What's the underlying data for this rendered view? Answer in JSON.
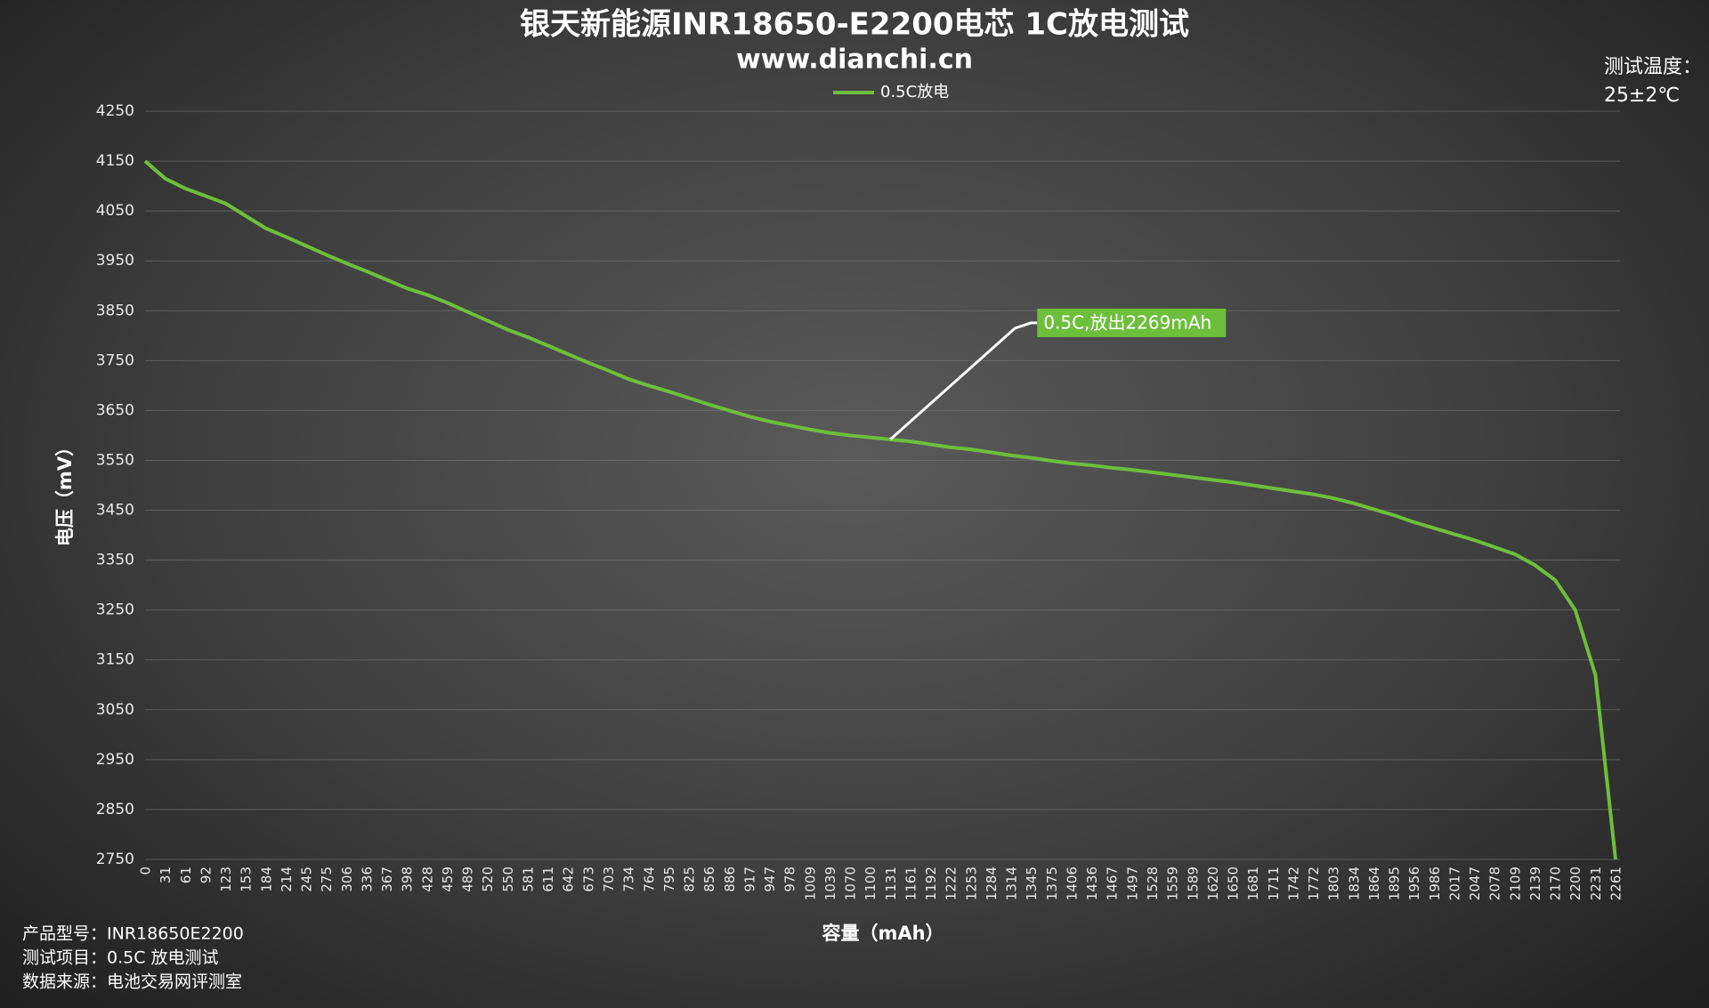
{
  "chart_data": {
    "type": "line",
    "title": "银天新能源INR18650-E2200电芯 1C放电测试",
    "subtitle": "www.dianchi.cn",
    "x_label": "容量（mAh）",
    "y_label": "电压（mV）",
    "corner_note": [
      "测试温度：",
      "25±2℃"
    ],
    "footer_notes": [
      "产品型号：INR18650E2200",
      "测试项目：0.5C 放电测试",
      "数据来源：电池交易网评测室"
    ],
    "annotation": "0.5C,放出2269mAh",
    "legend": "top",
    "grid": true,
    "categories": [
      "0",
      "31",
      "61",
      "92",
      "123",
      "153",
      "184",
      "214",
      "245",
      "275",
      "306",
      "336",
      "367",
      "398",
      "428",
      "459",
      "489",
      "520",
      "550",
      "581",
      "611",
      "642",
      "673",
      "703",
      "734",
      "764",
      "795",
      "825",
      "856",
      "886",
      "917",
      "947",
      "978",
      "1009",
      "1039",
      "1070",
      "1100",
      "1131",
      "1161",
      "1192",
      "1222",
      "1253",
      "1284",
      "1314",
      "1345",
      "1375",
      "1406",
      "1436",
      "1467",
      "1497",
      "1528",
      "1559",
      "1589",
      "1620",
      "1650",
      "1681",
      "1711",
      "1742",
      "1772",
      "1803",
      "1834",
      "1864",
      "1895",
      "1956",
      "1986",
      "2017",
      "2047",
      "2078",
      "2109",
      "2139",
      "2170",
      "2200",
      "2231",
      "2261"
    ],
    "series": [
      {
        "name": "0.5C放电",
        "color": "#6dbf3b",
        "values": [
          4150,
          4115,
          4095,
          4080,
          4065,
          4040,
          4015,
          3998,
          3980,
          3962,
          3945,
          3929,
          3912,
          3895,
          3882,
          3866,
          3848,
          3830,
          3812,
          3797,
          3780,
          3763,
          3746,
          3730,
          3713,
          3700,
          3688,
          3675,
          3662,
          3650,
          3638,
          3628,
          3620,
          3612,
          3605,
          3600,
          3596,
          3592,
          3588,
          3582,
          3576,
          3572,
          3566,
          3560,
          3555,
          3549,
          3544,
          3540,
          3535,
          3531,
          3526,
          3521,
          3516,
          3511,
          3506,
          3500,
          3494,
          3488,
          3482,
          3474,
          3464,
          3452,
          3440,
          3426,
          3414,
          3402,
          3390,
          3376,
          3362,
          3340,
          3310,
          3250,
          3120,
          2750
        ]
      }
    ],
    "ylim": [
      2750,
      4250
    ],
    "yticks": [
      2750,
      2850,
      2950,
      3050,
      3150,
      3250,
      3350,
      3450,
      3550,
      3650,
      3750,
      3850,
      3950,
      4050,
      4150,
      4250
    ]
  }
}
